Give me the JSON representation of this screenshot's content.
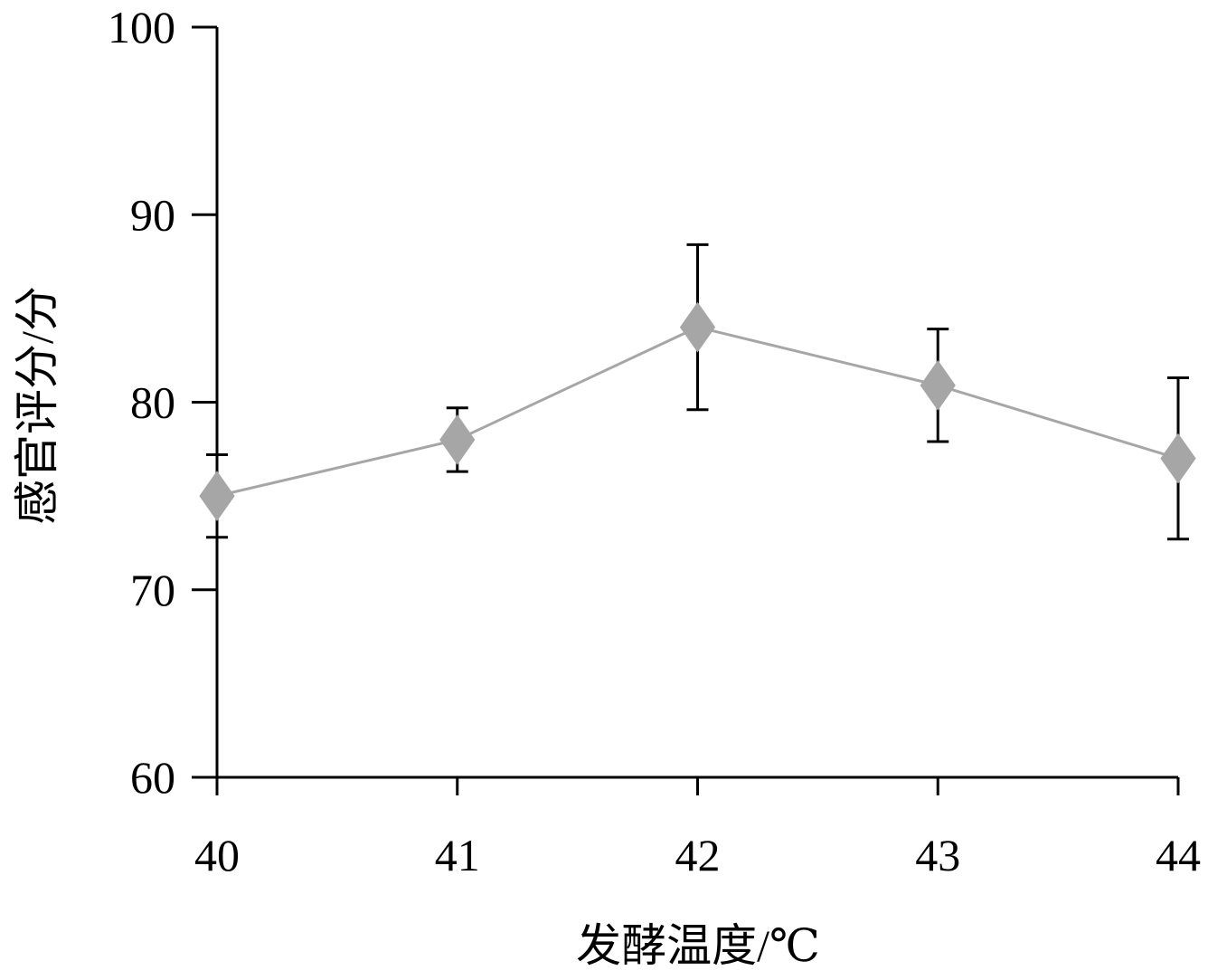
{
  "chart_data": {
    "type": "line",
    "xlabel": "发酵温度/℃",
    "ylabel": "感官评分/分",
    "x": [
      40,
      41,
      42,
      43,
      44
    ],
    "xlim": [
      40,
      44
    ],
    "ylim": [
      60,
      100
    ],
    "yticks": [
      60,
      70,
      80,
      90,
      100
    ],
    "series": [
      {
        "values": [
          75.0,
          78.0,
          84.0,
          80.9,
          77.0
        ],
        "error": [
          2.2,
          1.7,
          4.4,
          3.0,
          4.3
        ],
        "marker": "diamond",
        "color": "#a6a6a6"
      }
    ],
    "grid": false
  }
}
